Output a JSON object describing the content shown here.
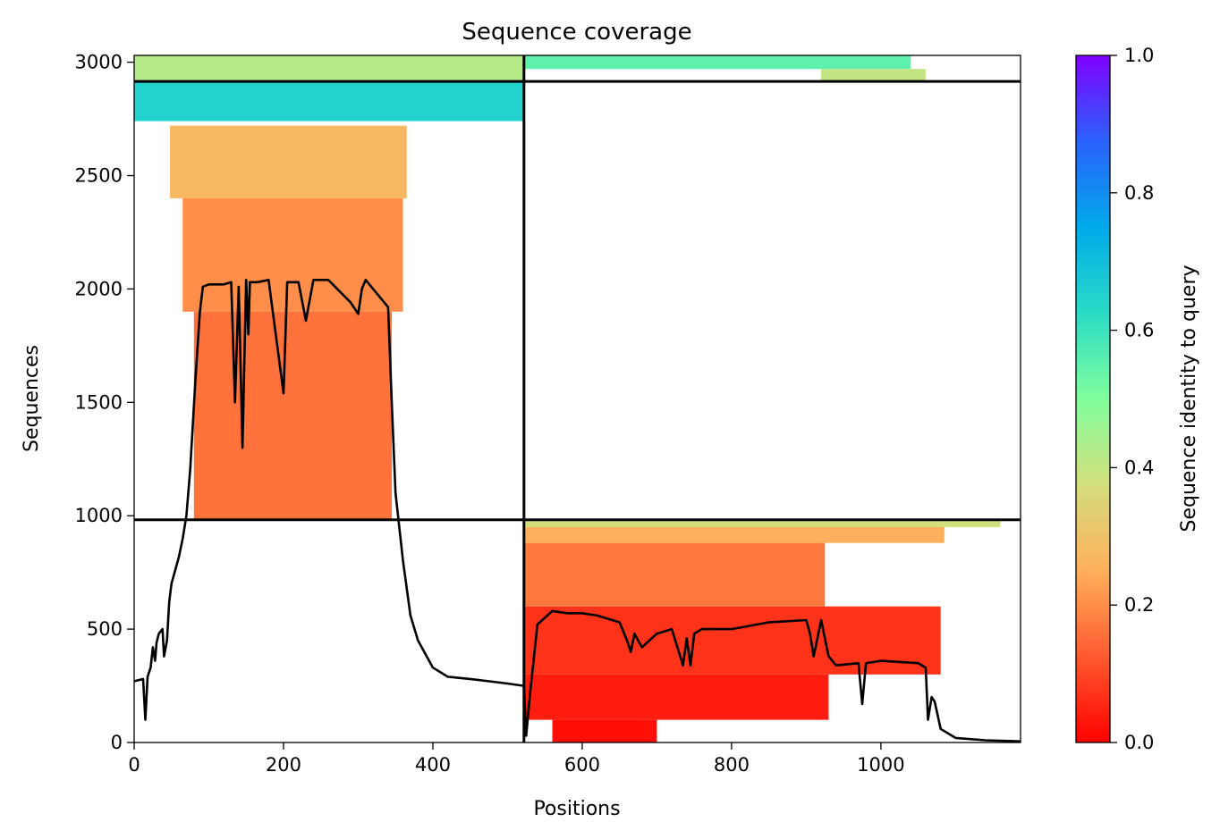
{
  "chart_data": {
    "type": "heatmap",
    "title": "Sequence coverage",
    "xlabel": "Positions",
    "ylabel": "Sequences",
    "xlim": [
      0,
      1187
    ],
    "ylim": [
      0,
      3030
    ],
    "x_ticks": [
      0,
      200,
      400,
      600,
      800,
      1000
    ],
    "y_ticks": [
      0,
      500,
      1000,
      1500,
      2000,
      2500,
      3000
    ],
    "grid": false,
    "block_dividers": {
      "x": [
        522
      ],
      "y": [
        982,
        2915
      ]
    },
    "colorbar": {
      "label": "Sequence identity to query",
      "range": [
        0,
        1
      ],
      "ticks": [
        0.0,
        0.2,
        0.4,
        0.6,
        0.8,
        1.0
      ],
      "tick_labels": [
        "0.0",
        "0.2",
        "0.4",
        "0.6",
        "0.8",
        "1.0"
      ],
      "colormap": [
        "#ff0000",
        "#ff5a2e",
        "#ffb05c",
        "#d4de7c",
        "#80fe9c",
        "#2adcc6",
        "#00aaea",
        "#2b62fc",
        "#7f00ff"
      ]
    },
    "coverage_regions": [
      {
        "x_start": 0,
        "x_end": 522,
        "y_start": 2915,
        "y_end": 3030,
        "identity": 0.42
      },
      {
        "x_start": 0,
        "x_end": 522,
        "y_start": 2740,
        "y_end": 2915,
        "identity": 0.65
      },
      {
        "x_start": 48,
        "x_end": 365,
        "y_start": 2400,
        "y_end": 2720,
        "identity": 0.27
      },
      {
        "x_start": 65,
        "x_end": 360,
        "y_start": 1900,
        "y_end": 2400,
        "identity": 0.2
      },
      {
        "x_start": 80,
        "x_end": 345,
        "y_start": 982,
        "y_end": 1900,
        "identity": 0.16
      },
      {
        "x_start": 522,
        "x_end": 1040,
        "y_start": 2970,
        "y_end": 3030,
        "identity": 0.55
      },
      {
        "x_start": 920,
        "x_end": 1060,
        "y_start": 2915,
        "y_end": 2970,
        "identity": 0.4
      },
      {
        "x_start": 522,
        "x_end": 1160,
        "y_start": 950,
        "y_end": 982,
        "identity": 0.38
      },
      {
        "x_start": 522,
        "x_end": 1085,
        "y_start": 880,
        "y_end": 950,
        "identity": 0.25
      },
      {
        "x_start": 522,
        "x_end": 925,
        "y_start": 600,
        "y_end": 880,
        "identity": 0.17
      },
      {
        "x_start": 522,
        "x_end": 1080,
        "y_start": 300,
        "y_end": 600,
        "identity": 0.07
      },
      {
        "x_start": 522,
        "x_end": 930,
        "y_start": 100,
        "y_end": 300,
        "identity": 0.04
      },
      {
        "x_start": 560,
        "x_end": 700,
        "y_start": 0,
        "y_end": 100,
        "identity": 0.02
      }
    ],
    "coverage_line": {
      "x": [
        0,
        12,
        15,
        18,
        22,
        25,
        28,
        30,
        33,
        38,
        40,
        44,
        47,
        50,
        55,
        60,
        65,
        70,
        75,
        82,
        88,
        92,
        100,
        120,
        130,
        135,
        140,
        145,
        150,
        153,
        155,
        158,
        165,
        180,
        200,
        205,
        210,
        220,
        230,
        240,
        245,
        260,
        290,
        300,
        305,
        310,
        340,
        345,
        350,
        360,
        370,
        380,
        400,
        420,
        450,
        500,
        522,
        525,
        530,
        540,
        560,
        580,
        600,
        620,
        650,
        660,
        665,
        670,
        680,
        700,
        720,
        735,
        740,
        745,
        750,
        760,
        800,
        850,
        900,
        905,
        910,
        920,
        930,
        940,
        970,
        975,
        980,
        1000,
        1050,
        1060,
        1063,
        1068,
        1072,
        1080,
        1100,
        1140,
        1187
      ],
      "y": [
        270,
        280,
        100,
        290,
        330,
        420,
        360,
        440,
        480,
        500,
        380,
        450,
        620,
        700,
        760,
        820,
        900,
        1000,
        1200,
        1600,
        1900,
        2010,
        2020,
        2020,
        2030,
        1500,
        2010,
        1300,
        2040,
        1800,
        2030,
        2030,
        2030,
        2040,
        1540,
        2030,
        2030,
        2030,
        1860,
        2040,
        2040,
        2040,
        1940,
        1890,
        2000,
        2040,
        1920,
        1500,
        1100,
        800,
        560,
        450,
        330,
        290,
        280,
        260,
        250,
        30,
        210,
        520,
        580,
        570,
        570,
        560,
        530,
        450,
        400,
        480,
        420,
        480,
        500,
        340,
        460,
        340,
        480,
        500,
        500,
        530,
        540,
        480,
        380,
        540,
        380,
        340,
        350,
        170,
        350,
        360,
        350,
        330,
        100,
        200,
        180,
        60,
        20,
        10,
        5
      ]
    }
  }
}
